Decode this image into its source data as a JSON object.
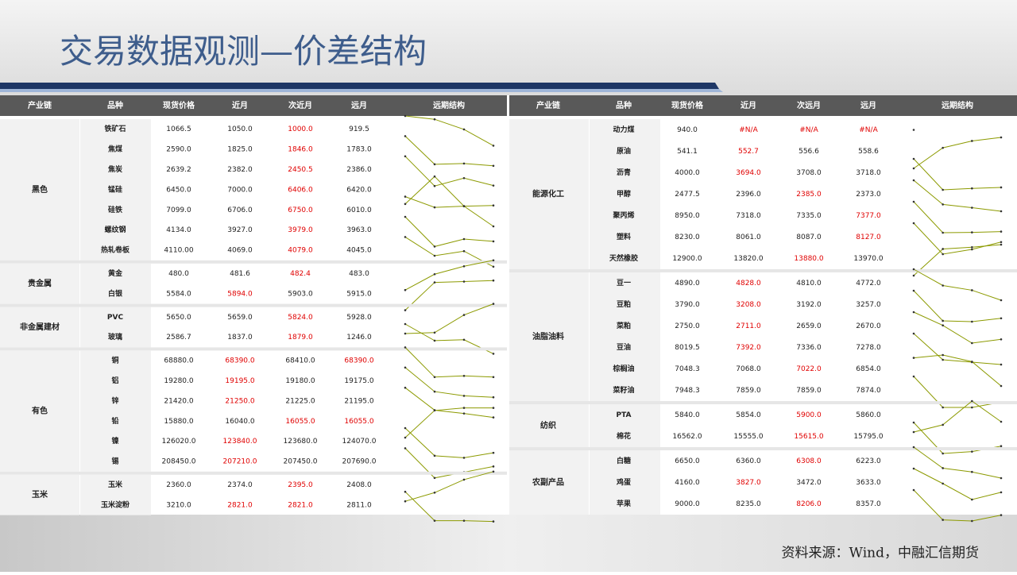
{
  "header": {
    "title": "交易数据观测—价差结构"
  },
  "highlight_color": "#e00000",
  "spark_color": "#8c9a00",
  "tables": [
    {
      "headers": [
        "产业链",
        "品种",
        "现货价格",
        "近月",
        "次近月",
        "远月",
        "远期结构"
      ],
      "groups": [
        {
          "name": "黑色",
          "rows": [
            {
              "name": "铁矿石",
              "cells": [
                "1066.5",
                "1050.0",
                "1000.0",
                "919.5"
              ],
              "red": [
                2
              ]
            },
            {
              "name": "焦煤",
              "cells": [
                "2590.0",
                "1825.0",
                "1846.0",
                "1783.0"
              ],
              "red": [
                2
              ]
            },
            {
              "name": "焦炭",
              "cells": [
                "2639.2",
                "2382.0",
                "2450.5",
                "2386.0"
              ],
              "red": [
                2
              ]
            },
            {
              "name": "锰硅",
              "cells": [
                "6450.0",
                "7000.0",
                "6406.0",
                "6420.0"
              ],
              "red": [
                2
              ]
            },
            {
              "name": "硅铁",
              "cells": [
                "7099.0",
                "6706.0",
                "6750.0",
                "6010.0"
              ],
              "red": [
                2
              ]
            },
            {
              "name": "螺纹钢",
              "cells": [
                "4134.0",
                "3927.0",
                "3979.0",
                "3963.0"
              ],
              "red": [
                2
              ]
            },
            {
              "name": "热轧卷板",
              "cells": [
                "4110.00",
                "4069.0",
                "4079.0",
                "4045.0"
              ],
              "red": [
                2
              ]
            }
          ]
        },
        {
          "name": "贵金属",
          "rows": [
            {
              "name": "黄金",
              "cells": [
                "480.0",
                "481.6",
                "482.4",
                "483.0"
              ],
              "red": [
                2
              ]
            },
            {
              "name": "白银",
              "cells": [
                "5584.0",
                "5894.0",
                "5903.0",
                "5915.0"
              ],
              "red": [
                1
              ]
            }
          ]
        },
        {
          "name": "非金属建材",
          "rows": [
            {
              "name": "PVC",
              "cells": [
                "5650.0",
                "5659.0",
                "5824.0",
                "5928.0"
              ],
              "red": [
                2
              ]
            },
            {
              "name": "玻璃",
              "cells": [
                "2586.7",
                "1837.0",
                "1879.0",
                "1246.0"
              ],
              "red": [
                2
              ]
            }
          ]
        },
        {
          "name": "有色",
          "rows": [
            {
              "name": "铜",
              "cells": [
                "68880.0",
                "68390.0",
                "68410.0",
                "68390.0"
              ],
              "red": [
                1,
                3
              ]
            },
            {
              "name": "铝",
              "cells": [
                "19280.0",
                "19195.0",
                "19180.0",
                "19175.0"
              ],
              "red": [
                1
              ]
            },
            {
              "name": "锌",
              "cells": [
                "21420.0",
                "21250.0",
                "21225.0",
                "21195.0"
              ],
              "red": [
                1
              ]
            },
            {
              "name": "铅",
              "cells": [
                "15880.0",
                "16040.0",
                "16055.0",
                "16055.0"
              ],
              "red": [
                2,
                3
              ]
            },
            {
              "name": "镍",
              "cells": [
                "126020.0",
                "123840.0",
                "123680.0",
                "124070.0"
              ],
              "red": [
                1
              ]
            },
            {
              "name": "锡",
              "cells": [
                "208450.0",
                "207210.0",
                "207450.0",
                "207690.0"
              ],
              "red": [
                1
              ]
            }
          ]
        },
        {
          "name": "玉米",
          "rows": [
            {
              "name": "玉米",
              "cells": [
                "2360.0",
                "2374.0",
                "2395.0",
                "2408.0"
              ],
              "red": [
                2
              ]
            },
            {
              "name": "玉米淀粉",
              "cells": [
                "3210.0",
                "2821.0",
                "2821.0",
                "2811.0"
              ],
              "red": [
                1,
                2
              ]
            }
          ]
        }
      ]
    },
    {
      "headers": [
        "产业链",
        "品种",
        "现货价格",
        "近月",
        "次远月",
        "远月",
        "远期结构"
      ],
      "groups": [
        {
          "name": "能源化工",
          "rows": [
            {
              "name": "动力煤",
              "cells": [
                "940.0",
                "#N/A",
                "#N/A",
                "#N/A"
              ],
              "red": [
                1,
                2,
                3
              ]
            },
            {
              "name": "原油",
              "cells": [
                "541.1",
                "552.7",
                "556.6",
                "558.6"
              ],
              "red": [
                1
              ]
            },
            {
              "name": "沥青",
              "cells": [
                "4000.0",
                "3694.0",
                "3708.0",
                "3718.0"
              ],
              "red": [
                1
              ]
            },
            {
              "name": "甲醇",
              "cells": [
                "2477.5",
                "2396.0",
                "2385.0",
                "2373.0"
              ],
              "red": [
                2
              ]
            },
            {
              "name": "聚丙烯",
              "cells": [
                "8950.0",
                "7318.0",
                "7335.0",
                "7377.0"
              ],
              "red": [
                3
              ]
            },
            {
              "name": "塑料",
              "cells": [
                "8230.0",
                "8061.0",
                "8087.0",
                "8127.0"
              ],
              "red": [
                3
              ]
            },
            {
              "name": "天然橡胶",
              "cells": [
                "12900.0",
                "13820.0",
                "13880.0",
                "13970.0"
              ],
              "red": [
                2
              ]
            }
          ]
        },
        {
          "name": "油脂油料",
          "rows": [
            {
              "name": "豆一",
              "cells": [
                "4890.0",
                "4828.0",
                "4810.0",
                "4772.0"
              ],
              "red": [
                1
              ]
            },
            {
              "name": "豆粕",
              "cells": [
                "3790.0",
                "3208.0",
                "3192.0",
                "3257.0"
              ],
              "red": [
                1
              ]
            },
            {
              "name": "菜粕",
              "cells": [
                "2750.0",
                "2711.0",
                "2659.0",
                "2670.0"
              ],
              "red": [
                1
              ]
            },
            {
              "name": "豆油",
              "cells": [
                "8019.5",
                "7392.0",
                "7336.0",
                "7278.0"
              ],
              "red": [
                1
              ]
            },
            {
              "name": "棕榈油",
              "cells": [
                "7048.3",
                "7068.0",
                "7022.0",
                "6854.0"
              ],
              "red": [
                2
              ]
            },
            {
              "name": "菜籽油",
              "cells": [
                "7948.3",
                "7859.0",
                "7859.0",
                "7874.0"
              ],
              "red": []
            }
          ]
        },
        {
          "name": "纺织",
          "rows": [
            {
              "name": "PTA",
              "cells": [
                "5840.0",
                "5854.0",
                "5900.0",
                "5860.0"
              ],
              "red": [
                2
              ]
            },
            {
              "name": "棉花",
              "cells": [
                "16562.0",
                "15555.0",
                "15615.0",
                "15795.0"
              ],
              "red": [
                2
              ]
            }
          ]
        },
        {
          "name": "农副产品",
          "rows": [
            {
              "name": "白糖",
              "cells": [
                "6650.0",
                "6360.0",
                "6308.0",
                "6223.0"
              ],
              "red": [
                2
              ]
            },
            {
              "name": "鸡蛋",
              "cells": [
                "4160.0",
                "3827.0",
                "3472.0",
                "3633.0"
              ],
              "red": [
                1
              ]
            },
            {
              "name": "苹果",
              "cells": [
                "9000.0",
                "8235.0",
                "8206.0",
                "8357.0"
              ],
              "red": [
                2
              ]
            }
          ]
        }
      ]
    }
  ],
  "footer": {
    "source": "资料来源：Wind，中融汇信期货"
  }
}
